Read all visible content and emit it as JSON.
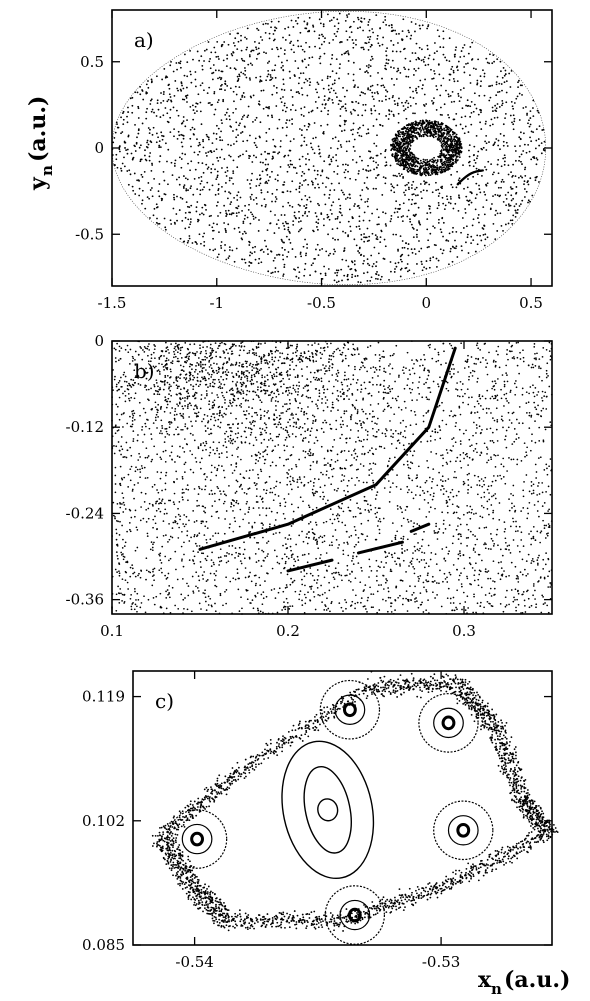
{
  "chart_data": [
    {
      "type": "scatter",
      "panel_label": "a)",
      "ylabel": "y",
      "ylabel_subscript": "n",
      "ylabel_units": "(a.u.)",
      "xlim": [
        -1.5,
        0.6
      ],
      "ylim": [
        -0.8,
        0.8
      ],
      "xticks": [
        -1.5,
        -1,
        -0.5,
        0,
        0.5
      ],
      "xtick_labels": [
        "-1.5",
        "-1",
        "-0.5",
        "0",
        "0.5"
      ],
      "yticks": [
        -0.5,
        0,
        0.5
      ],
      "ytick_labels": [
        "-0.5",
        "0",
        "0.5"
      ],
      "features": {
        "boundary": {
          "x_min": -1.5,
          "x_max": 0.57,
          "y_extent": 0.79
        },
        "island_ring": {
          "center": [
            0.0,
            0.0
          ],
          "inner_radius": 0.07,
          "outer_radius": 0.17
        },
        "chaotic_sea": "dense scattered points filling the boundary",
        "arc_segment": {
          "x": [
            0.15,
            0.27
          ],
          "y": [
            -0.21,
            -0.13
          ]
        }
      }
    },
    {
      "type": "scatter",
      "panel_label": "b)",
      "xlim": [
        0.1,
        0.35
      ],
      "ylim": [
        -0.38,
        0.0
      ],
      "xticks": [
        0.1,
        0.2,
        0.3
      ],
      "xtick_labels": [
        "0.1",
        "0.2",
        "0.3"
      ],
      "yticks": [
        0,
        -0.12,
        -0.24,
        -0.36
      ],
      "ytick_labels": [
        "0",
        "-0.12",
        "-0.24",
        "-0.36"
      ],
      "features": {
        "curve_upper": {
          "x": [
            0.15,
            0.2,
            0.25,
            0.28,
            0.295
          ],
          "y": [
            -0.29,
            -0.255,
            -0.2,
            -0.12,
            -0.01
          ]
        },
        "curve_lower_segments": [
          {
            "x": [
              0.2,
              0.225
            ],
            "y": [
              -0.32,
              -0.305
            ]
          },
          {
            "x": [
              0.24,
              0.265
            ],
            "y": [
              -0.295,
              -0.28
            ]
          },
          {
            "x": [
              0.27,
              0.28
            ],
            "y": [
              -0.265,
              -0.255
            ]
          }
        ],
        "dense_cluster": {
          "center": [
            0.17,
            -0.05
          ]
        }
      }
    },
    {
      "type": "scatter",
      "panel_label": "c)",
      "xlabel": "x",
      "xlabel_subscript": "n",
      "xlabel_units": "(a.u.)",
      "xlim": [
        -0.5425,
        -0.5255
      ],
      "ylim": [
        0.085,
        0.1225
      ],
      "xticks": [
        -0.54,
        -0.53
      ],
      "xtick_labels": [
        "-0.54",
        "-0.53"
      ],
      "yticks": [
        0.085,
        0.102,
        0.119
      ],
      "ytick_labels": [
        "0.085",
        "0.102",
        "0.119"
      ],
      "features": {
        "central_fixed_point": [
          -0.5346,
          0.1035
        ],
        "central_tori": 3,
        "island_chain_centers": [
          [
            -0.5337,
            0.1172
          ],
          [
            -0.5297,
            0.1154
          ],
          [
            -0.5291,
            0.1007
          ],
          [
            -0.5335,
            0.0891
          ],
          [
            -0.5399,
            0.0995
          ]
        ],
        "outer_boundary_layer": "thick band of points enclosing the island chain"
      }
    }
  ]
}
